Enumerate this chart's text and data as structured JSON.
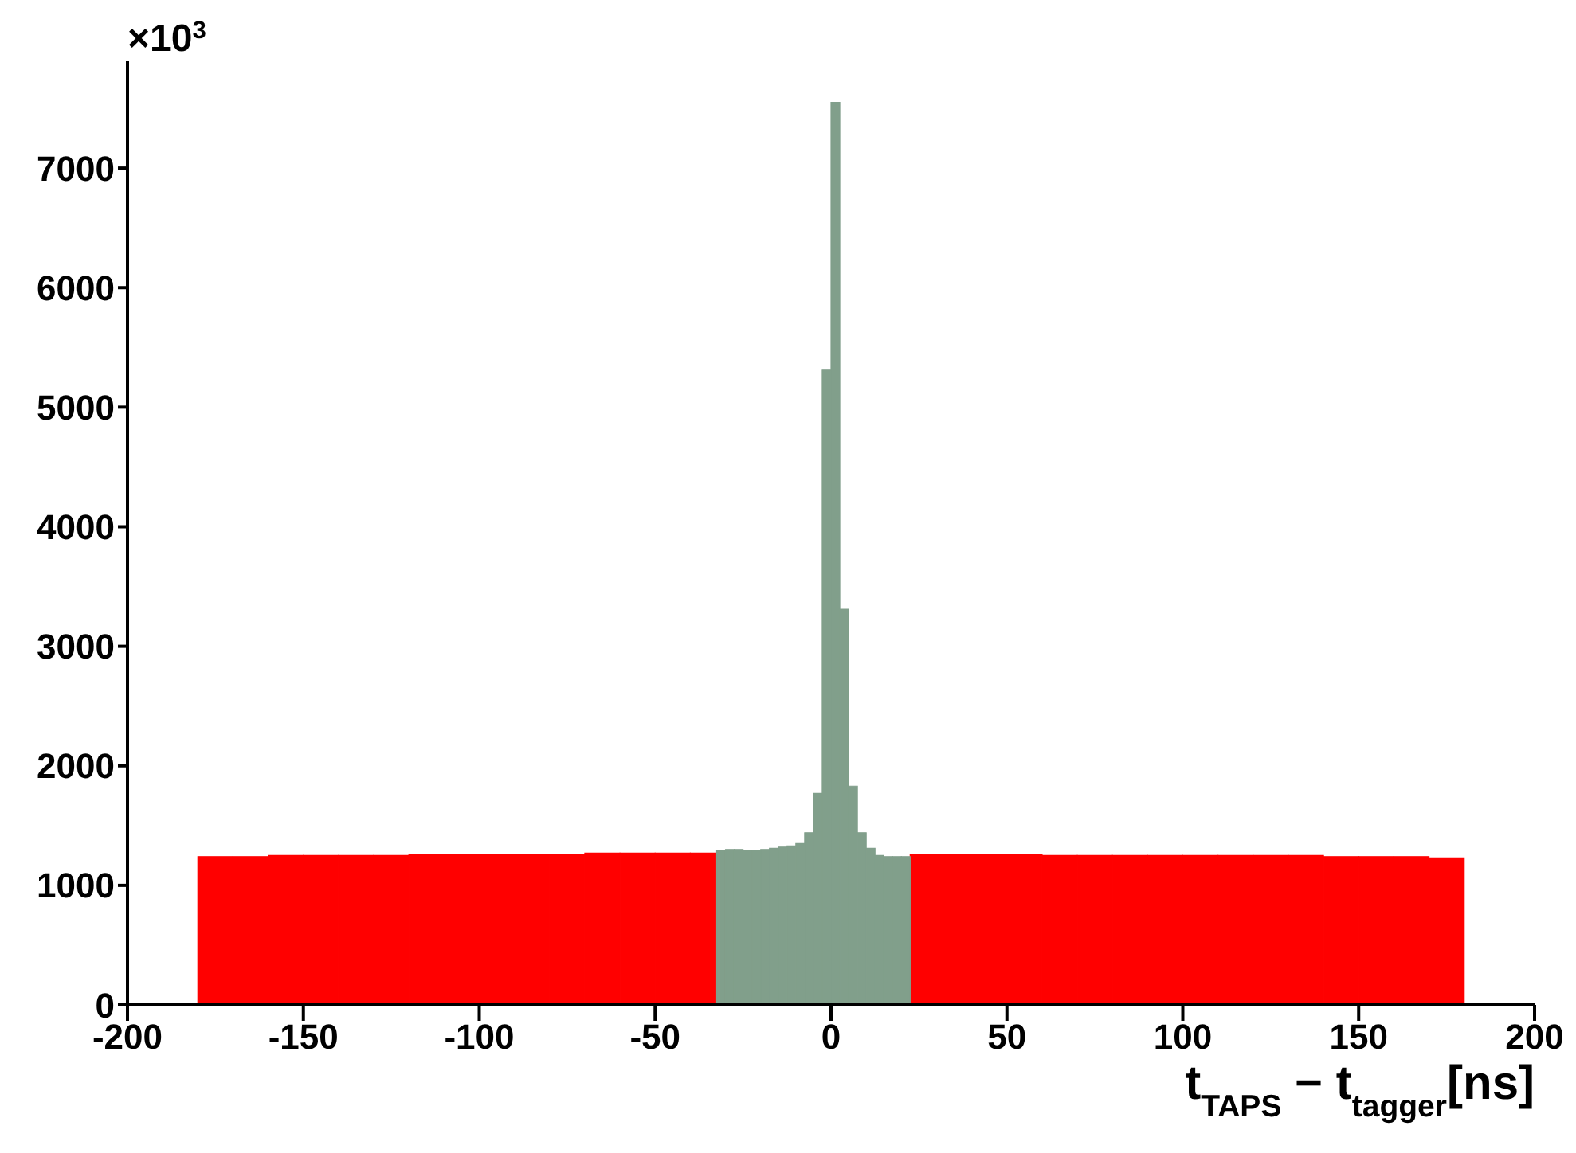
{
  "chart_data": {
    "type": "histogram",
    "xlabel": "t$_{TAPS}$ − t$_{tagger}$[ns]",
    "ylabel": "×10$^{3}$",
    "bins": [
      -180,
      -170,
      -160,
      -150,
      -140,
      -130,
      -120,
      -110,
      -100,
      -90,
      -80,
      -70,
      -60,
      -50,
      -40,
      -32.5,
      -30,
      -27.5,
      -25,
      -22.5,
      -20,
      -17.5,
      -15,
      -12.5,
      -10,
      -7.5,
      -5,
      -2.5,
      0,
      2.5,
      5,
      7.5,
      10,
      12.5,
      15,
      17.5,
      20,
      22.5,
      30,
      40,
      50,
      60,
      70,
      80,
      90,
      100,
      110,
      120,
      130,
      140,
      150,
      160,
      170,
      180
    ],
    "series": [
      {
        "color": "#ff0000",
        "values": [
          1240,
          1240,
          1250,
          1250,
          1250,
          1250,
          1260,
          1260,
          1260,
          1260,
          1260,
          1270,
          1270,
          1270,
          1270,
          null,
          null,
          null,
          null,
          null,
          null,
          null,
          null,
          null,
          null,
          null,
          null,
          null,
          null,
          null,
          null,
          null,
          null,
          null,
          null,
          null,
          null,
          1260,
          1260,
          1260,
          1260,
          1250,
          1250,
          1250,
          1250,
          1250,
          1250,
          1250,
          1250,
          1240,
          1240,
          1240,
          1230
        ]
      },
      {
        "color": "#819f8b",
        "values": [
          null,
          null,
          null,
          null,
          null,
          null,
          null,
          null,
          null,
          null,
          null,
          null,
          null,
          null,
          null,
          1290,
          1300,
          1300,
          1290,
          1290,
          1300,
          1310,
          1320,
          1330,
          1350,
          1440,
          1770,
          5310,
          7550,
          3310,
          1830,
          1440,
          1310,
          1250,
          1240,
          1240,
          1240,
          null,
          null,
          null,
          null,
          null,
          null,
          null,
          null,
          null,
          null,
          null,
          null,
          null,
          null,
          null,
          null
        ]
      }
    ],
    "xlim": [
      -200,
      200
    ],
    "xticks": [
      -200,
      -150,
      -100,
      -50,
      0,
      50,
      100,
      150,
      200
    ],
    "ylim": [
      0,
      7900
    ],
    "yticks": [
      0,
      1000,
      2000,
      3000,
      4000,
      5000,
      6000,
      7000
    ],
    "legend": false
  }
}
